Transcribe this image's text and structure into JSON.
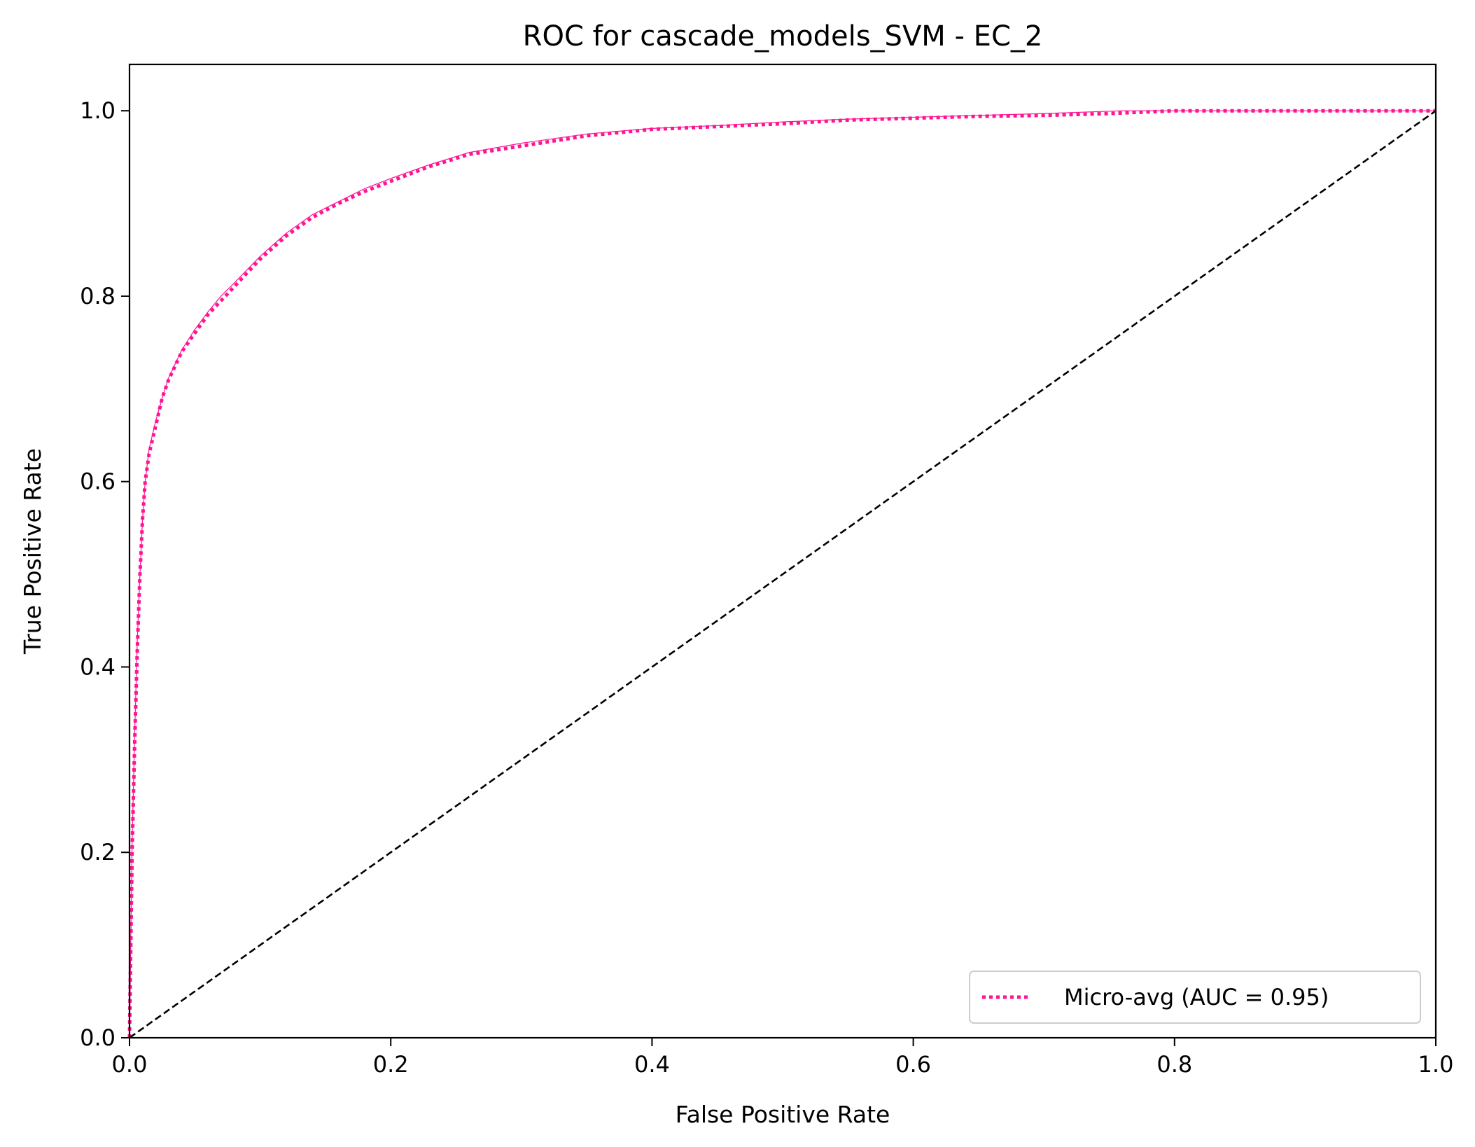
{
  "chart_data": {
    "type": "line",
    "title": "ROC for cascade_models_SVM - EC_2",
    "xlabel": "False Positive Rate",
    "ylabel": "True Positive Rate",
    "xlim": [
      0.0,
      1.0
    ],
    "ylim": [
      0.0,
      1.05
    ],
    "xticks": [
      "0.0",
      "0.2",
      "0.4",
      "0.6",
      "0.8",
      "1.0"
    ],
    "yticks": [
      "0.0",
      "0.2",
      "0.4",
      "0.6",
      "0.8",
      "1.0"
    ],
    "grid": false,
    "legend_position": "lower-right",
    "series": [
      {
        "name": "Micro-avg (AUC = 0.95)",
        "style": "dotted",
        "color": "#ff1493",
        "x": [
          0.0,
          0.002,
          0.004,
          0.006,
          0.008,
          0.01,
          0.012,
          0.015,
          0.02,
          0.025,
          0.03,
          0.04,
          0.05,
          0.06,
          0.07,
          0.08,
          0.1,
          0.12,
          0.14,
          0.16,
          0.18,
          0.2,
          0.23,
          0.26,
          0.3,
          0.35,
          0.4,
          0.45,
          0.5,
          0.55,
          0.6,
          0.65,
          0.7,
          0.75,
          0.8,
          0.85,
          0.9,
          0.95,
          1.0
        ],
        "y": [
          0.0,
          0.2,
          0.32,
          0.42,
          0.5,
          0.56,
          0.6,
          0.63,
          0.66,
          0.69,
          0.71,
          0.74,
          0.76,
          0.78,
          0.795,
          0.81,
          0.84,
          0.865,
          0.885,
          0.9,
          0.913,
          0.924,
          0.94,
          0.953,
          0.962,
          0.973,
          0.98,
          0.983,
          0.986,
          0.99,
          0.992,
          0.994,
          0.995,
          0.997,
          1.0,
          1.0,
          1.0,
          1.0,
          1.0
        ]
      },
      {
        "style": "solid",
        "color": "#ff1493",
        "x": [
          0.0,
          0.002,
          0.004,
          0.006,
          0.008,
          0.01,
          0.012,
          0.015,
          0.02,
          0.025,
          0.03,
          0.04,
          0.05,
          0.06,
          0.07,
          0.08,
          0.1,
          0.12,
          0.14,
          0.16,
          0.18,
          0.2,
          0.23,
          0.26,
          0.3,
          0.35,
          0.4,
          0.45,
          0.5,
          0.55,
          0.6,
          0.65,
          0.7,
          0.76,
          0.8,
          0.9,
          1.0
        ],
        "y": [
          0.0,
          0.21,
          0.33,
          0.43,
          0.5,
          0.56,
          0.6,
          0.635,
          0.665,
          0.69,
          0.712,
          0.742,
          0.764,
          0.783,
          0.8,
          0.814,
          0.843,
          0.868,
          0.888,
          0.902,
          0.916,
          0.927,
          0.942,
          0.955,
          0.965,
          0.975,
          0.981,
          0.984,
          0.988,
          0.991,
          0.993,
          0.995,
          0.997,
          1.0,
          1.0,
          1.0,
          1.0
        ]
      },
      {
        "style": "dashed",
        "color": "#000000",
        "x": [
          0.0,
          1.0
        ],
        "y": [
          0.0,
          1.0
        ]
      }
    ]
  }
}
